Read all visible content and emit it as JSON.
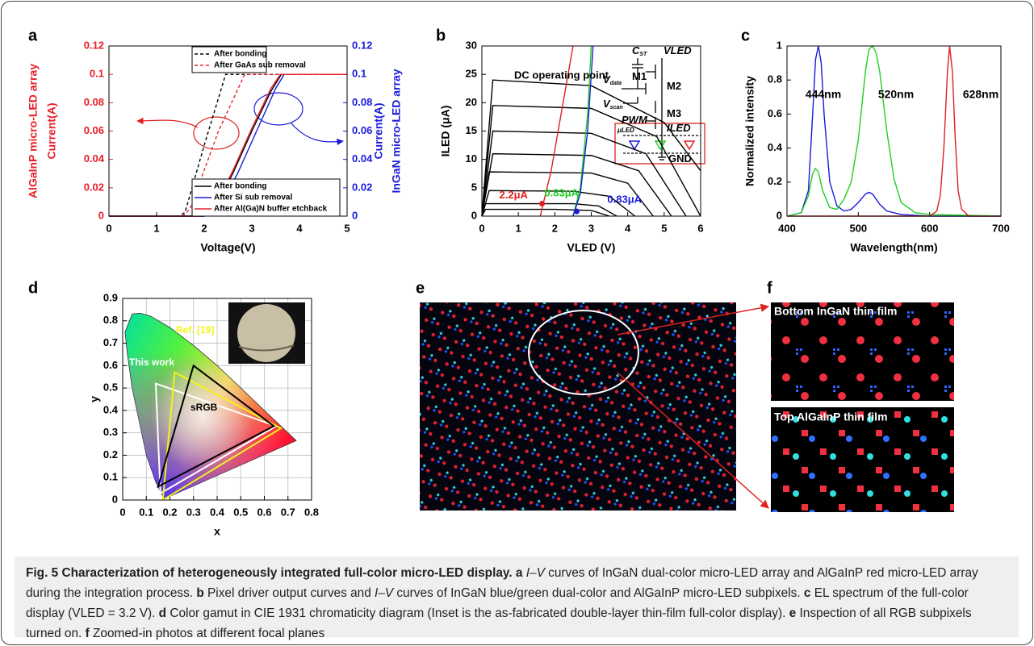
{
  "chart_data": [
    {
      "type": "line",
      "panel": "a",
      "x_label": "Voltage(V)",
      "y_label": [
        "AlGaInP micro-LED array",
        "Current(A)"
      ],
      "y_label_color": "#e8202a",
      "y2_label": [
        "Current(A)",
        "InGaN micro-LED array"
      ],
      "y2_label_color": "#1a1adc",
      "xlim": [
        0,
        5
      ],
      "xticks": [
        0,
        1,
        2,
        3,
        4,
        5
      ],
      "ylim": [
        0,
        0.12
      ],
      "yticks": [
        0,
        0.02,
        0.04,
        0.06,
        0.08,
        0.1,
        0.12
      ],
      "y2lim": [
        0,
        0.12
      ],
      "y2ticks": [
        0,
        0.02,
        0.04,
        0.06,
        0.08,
        0.1,
        0.12
      ],
      "grid": false,
      "series": [
        {
          "name": "After bonding",
          "color": "#000000",
          "dash": true,
          "axis": "y",
          "x": [
            0,
            1.5,
            1.6,
            2.0,
            2.45,
            5
          ],
          "values": [
            0,
            0,
            0.003,
            0.05,
            0.1,
            0.1
          ]
        },
        {
          "name": "After GaAs sub removal",
          "color": "#e8202a",
          "dash": true,
          "axis": "y",
          "x": [
            0,
            1.55,
            1.7,
            2.3,
            2.85,
            5
          ],
          "values": [
            0,
            0,
            0.005,
            0.06,
            0.1,
            0.1
          ]
        },
        {
          "name": "After bonding",
          "color": "#000000",
          "dash": false,
          "axis": "y2",
          "x": [
            0,
            2.0,
            2.2,
            2.6,
            3.0,
            3.4,
            3.62
          ],
          "values": [
            0,
            0,
            0.005,
            0.03,
            0.06,
            0.088,
            0.1
          ]
        },
        {
          "name": "After Si sub removal",
          "color": "#1a1adc",
          "dash": false,
          "axis": "y2",
          "x": [
            0,
            2.0,
            2.3,
            2.7,
            3.1,
            3.5,
            3.68
          ],
          "values": [
            0,
            0,
            0.005,
            0.03,
            0.06,
            0.09,
            0.1
          ]
        },
        {
          "name": "After Al(Ga)N buffer etchback",
          "color": "#e8202a",
          "dash": false,
          "axis": "y2",
          "x": [
            0,
            1.9,
            2.2,
            2.6,
            3.0,
            3.4,
            3.6,
            5
          ],
          "values": [
            0,
            0,
            0.005,
            0.032,
            0.062,
            0.09,
            0.1,
            0.1
          ]
        }
      ]
    },
    {
      "type": "line",
      "panel": "b",
      "x_label": "VLED (V)",
      "y_label": "ILED (μA)",
      "annotation": "DC operating point",
      "xlim": [
        0,
        6
      ],
      "xticks": [
        0,
        1,
        2,
        3,
        4,
        5,
        6
      ],
      "ylim": [
        0,
        30
      ],
      "yticks": [
        0,
        5,
        10,
        15,
        20,
        25,
        30
      ],
      "grid": false,
      "series": [
        {
          "color": "#000000",
          "x": [
            0,
            0.1,
            2,
            3,
            3.5
          ],
          "values": [
            0,
            1.2,
            1.2,
            1.0,
            0
          ]
        },
        {
          "color": "#000000",
          "x": [
            0,
            0.1,
            2.5,
            3.2,
            3.7
          ],
          "values": [
            0,
            2.2,
            2.2,
            1.8,
            0
          ]
        },
        {
          "color": "#000000",
          "x": [
            0,
            0.2,
            2.5,
            3.5,
            4.2
          ],
          "values": [
            0,
            4.5,
            4.4,
            3.5,
            0
          ]
        },
        {
          "color": "#000000",
          "x": [
            0,
            0.2,
            3,
            4,
            4.7
          ],
          "values": [
            0,
            7.8,
            7.6,
            5.8,
            0
          ]
        },
        {
          "color": "#000000",
          "x": [
            0,
            0.3,
            3,
            4.3,
            5.2
          ],
          "values": [
            0,
            11,
            10.7,
            8,
            0
          ]
        },
        {
          "color": "#000000",
          "x": [
            0,
            0.3,
            3,
            4.5,
            5.6
          ],
          "values": [
            0,
            15,
            14.6,
            11,
            0
          ]
        },
        {
          "color": "#000000",
          "x": [
            0,
            0.3,
            3,
            4.8,
            6
          ],
          "values": [
            0,
            19.5,
            19,
            14,
            0
          ]
        },
        {
          "color": "#000000",
          "x": [
            0,
            0.3,
            3,
            5,
            6
          ],
          "values": [
            0,
            24,
            23,
            16.5,
            8
          ]
        },
        {
          "color": "#e02020",
          "x": [
            1.6,
            1.9,
            2.2,
            2.5
          ],
          "values": [
            0,
            8,
            19,
            30
          ]
        },
        {
          "color": "#20d020",
          "x": [
            2.5,
            2.7,
            2.9,
            3.0
          ],
          "values": [
            0,
            5,
            18,
            30
          ]
        },
        {
          "color": "#1a1adc",
          "x": [
            2.5,
            2.7,
            2.9,
            3.05
          ],
          "values": [
            0,
            4,
            15,
            30
          ]
        }
      ],
      "operating_points": [
        {
          "label": "2.2μA",
          "color": "#e02020",
          "x": 1.65,
          "y": 2.2
        },
        {
          "label": "0.83μA",
          "color": "#20d020",
          "x": 2.6,
          "y": 0.83
        },
        {
          "label": "0.83μA",
          "color": "#1a1adc",
          "x": 2.6,
          "y": 0.83
        }
      ],
      "circuit": [
        {
          "main": "C",
          "sub": "ST"
        },
        {
          "main": "VLED"
        },
        {
          "main": "V",
          "sub": "data"
        },
        {
          "main": "M1"
        },
        {
          "main": "M2"
        },
        {
          "main": "V",
          "sub": "scan"
        },
        {
          "main": "PWM"
        },
        {
          "main": "M3"
        },
        {
          "main": "ILED"
        },
        {
          "main": "μLED"
        },
        {
          "main": "GND"
        }
      ]
    },
    {
      "type": "line",
      "panel": "c",
      "x_label": "Wavelength(nm)",
      "y_label": "Normalized intensity",
      "peak_labels": [
        "444nm",
        "520nm",
        "628nm"
      ],
      "xlim": [
        400,
        700
      ],
      "xticks": [
        400,
        500,
        600,
        700
      ],
      "ylim": [
        0,
        1
      ],
      "yticks": [
        0,
        0.2,
        0.4,
        0.6,
        0.8,
        1
      ],
      "grid": false,
      "series": [
        {
          "color": "#1a1adc",
          "x": [
            400,
            420,
            430,
            436,
            440,
            444,
            448,
            452,
            460,
            470,
            480,
            490,
            500,
            510,
            515,
            520,
            530,
            540,
            560,
            600,
            700
          ],
          "values": [
            0,
            0.02,
            0.15,
            0.6,
            0.92,
            1,
            0.9,
            0.6,
            0.2,
            0.06,
            0.03,
            0.04,
            0.08,
            0.13,
            0.14,
            0.13,
            0.07,
            0.03,
            0.01,
            0,
            0
          ]
        },
        {
          "color": "#20d020",
          "x": [
            400,
            420,
            430,
            436,
            440,
            444,
            450,
            460,
            470,
            480,
            490,
            500,
            510,
            515,
            520,
            525,
            530,
            540,
            550,
            560,
            580,
            600,
            700
          ],
          "values": [
            0,
            0.02,
            0.12,
            0.25,
            0.28,
            0.26,
            0.15,
            0.05,
            0.04,
            0.1,
            0.2,
            0.45,
            0.85,
            0.98,
            1,
            0.96,
            0.85,
            0.5,
            0.22,
            0.08,
            0.02,
            0.01,
            0
          ]
        },
        {
          "color": "#e02020",
          "x": [
            400,
            600,
            610,
            615,
            620,
            625,
            628,
            632,
            636,
            640,
            645,
            655,
            700
          ],
          "values": [
            0,
            0,
            0.03,
            0.12,
            0.4,
            0.85,
            1,
            0.85,
            0.45,
            0.15,
            0.04,
            0,
            0
          ]
        }
      ]
    },
    {
      "type": "chromaticity",
      "panel": "d",
      "x_label": "x",
      "y_label": "y",
      "xlim": [
        0,
        0.8
      ],
      "xticks": [
        0,
        0.1,
        0.2,
        0.3,
        0.4,
        0.5,
        0.6,
        0.7,
        0.8
      ],
      "ylim": [
        0,
        0.9
      ],
      "yticks": [
        0,
        0.1,
        0.2,
        0.3,
        0.4,
        0.5,
        0.6,
        0.7,
        0.8,
        0.9
      ],
      "grid": true,
      "series": [
        {
          "name": "This work",
          "color": "#ffffff",
          "x": [
            0.14,
            0.65,
            0.16
          ],
          "values": [
            0.52,
            0.33,
            0.03
          ]
        },
        {
          "name": "Ref. [19]",
          "color": "#f2f21a",
          "x": [
            0.22,
            0.67,
            0.17
          ],
          "values": [
            0.57,
            0.32,
            0.0
          ]
        },
        {
          "name": "sRGB",
          "color": "#000000",
          "x": [
            0.3,
            0.64,
            0.15
          ],
          "values": [
            0.6,
            0.33,
            0.06
          ]
        }
      ]
    }
  ],
  "photos": {
    "panel_e": "e",
    "panel_f": "f",
    "captions": [
      "Bottom InGaN thin film",
      "Top AlGaInP thin film"
    ]
  },
  "caption": [
    {
      "style": "bold",
      "text": "Fig. 5 Characterization of heterogeneously integrated full-color micro-LED display. "
    },
    {
      "style": "bold",
      "text": "a "
    },
    {
      "style": "italic",
      "text": "I–V"
    },
    {
      "style": "normal",
      "text": " curves of InGaN dual-color micro-LED array and AlGaInP red micro-LED array during the integration process. "
    },
    {
      "style": "bold",
      "text": "b "
    },
    {
      "style": "normal",
      "text": "Pixel driver output curves and "
    },
    {
      "style": "italic",
      "text": "I–V"
    },
    {
      "style": "normal",
      "text": " curves of InGaN blue/green dual-color and AlGaInP micro-LED subpixels. "
    },
    {
      "style": "bold",
      "text": "c "
    },
    {
      "style": "normal",
      "text": "EL spectrum of the full-color display (VLED = 3.2 V). "
    },
    {
      "style": "bold",
      "text": "d "
    },
    {
      "style": "normal",
      "text": "Color gamut in CIE 1931 chromaticity diagram (Inset is the as-fabricated double-layer thin-film full-color display). "
    },
    {
      "style": "bold",
      "text": "e "
    },
    {
      "style": "normal",
      "text": "Inspection of all RGB subpixels turned on. "
    },
    {
      "style": "bold",
      "text": "f "
    },
    {
      "style": "normal",
      "text": "Zoomed-in photos at different focal planes"
    }
  ]
}
